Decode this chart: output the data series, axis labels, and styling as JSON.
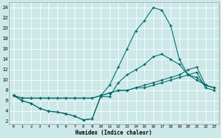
{
  "xlabel": "Humidex (Indice chaleur)",
  "background_color": "#cce8e8",
  "grid_color": "#ffffff",
  "line_color": "#006666",
  "xlim": [
    -0.5,
    23.5
  ],
  "ylim": [
    1.5,
    25
  ],
  "xticks": [
    0,
    1,
    2,
    3,
    4,
    5,
    6,
    7,
    8,
    9,
    10,
    11,
    12,
    13,
    14,
    15,
    16,
    17,
    18,
    19,
    20,
    21,
    22,
    23
  ],
  "yticks": [
    2,
    4,
    6,
    8,
    10,
    12,
    14,
    16,
    18,
    20,
    22,
    24
  ],
  "line1_x": [
    0,
    1,
    2,
    3,
    4,
    5,
    6,
    7,
    8,
    9,
    10,
    11,
    12,
    13,
    14,
    15,
    16,
    17,
    18,
    19,
    20,
    21,
    22,
    23
  ],
  "line1_y": [
    7.0,
    6.0,
    5.5,
    4.5,
    4.0,
    3.8,
    3.5,
    3.0,
    2.3,
    2.5,
    7.0,
    9.0,
    12.5,
    16.0,
    19.5,
    21.5,
    24.0,
    23.5,
    20.5,
    14.0,
    11.0,
    10.5,
    9.0,
    8.5
  ],
  "line2_x": [
    0,
    1,
    2,
    3,
    4,
    5,
    6,
    7,
    8,
    9,
    10,
    11,
    12,
    13,
    14,
    15,
    16,
    17,
    18,
    19,
    20,
    21,
    22,
    23
  ],
  "line2_y": [
    7.0,
    6.0,
    5.5,
    4.5,
    4.0,
    3.8,
    3.5,
    3.0,
    2.3,
    2.5,
    6.8,
    6.8,
    9.5,
    11.0,
    12.0,
    13.0,
    14.5,
    15.0,
    14.0,
    13.0,
    11.0,
    10.0,
    9.0,
    8.5
  ],
  "line3_x": [
    0,
    1,
    2,
    3,
    4,
    5,
    6,
    7,
    8,
    9,
    10,
    11,
    12,
    13,
    14,
    15,
    16,
    17,
    18,
    19,
    20,
    21,
    22,
    23
  ],
  "line3_y": [
    7.0,
    6.5,
    6.5,
    6.5,
    6.5,
    6.5,
    6.5,
    6.5,
    6.5,
    6.5,
    7.0,
    7.5,
    8.0,
    8.0,
    8.5,
    9.0,
    9.5,
    10.0,
    10.5,
    11.0,
    12.0,
    12.5,
    9.0,
    8.5
  ],
  "line4_x": [
    0,
    1,
    2,
    3,
    4,
    5,
    6,
    7,
    8,
    9,
    10,
    11,
    12,
    13,
    14,
    15,
    16,
    17,
    18,
    19,
    20,
    21,
    22,
    23
  ],
  "line4_y": [
    7.0,
    6.5,
    6.5,
    6.5,
    6.5,
    6.5,
    6.5,
    6.5,
    6.5,
    6.5,
    7.0,
    7.5,
    8.0,
    8.0,
    8.5,
    8.5,
    9.0,
    9.5,
    10.0,
    10.5,
    11.0,
    11.5,
    8.5,
    8.0
  ]
}
